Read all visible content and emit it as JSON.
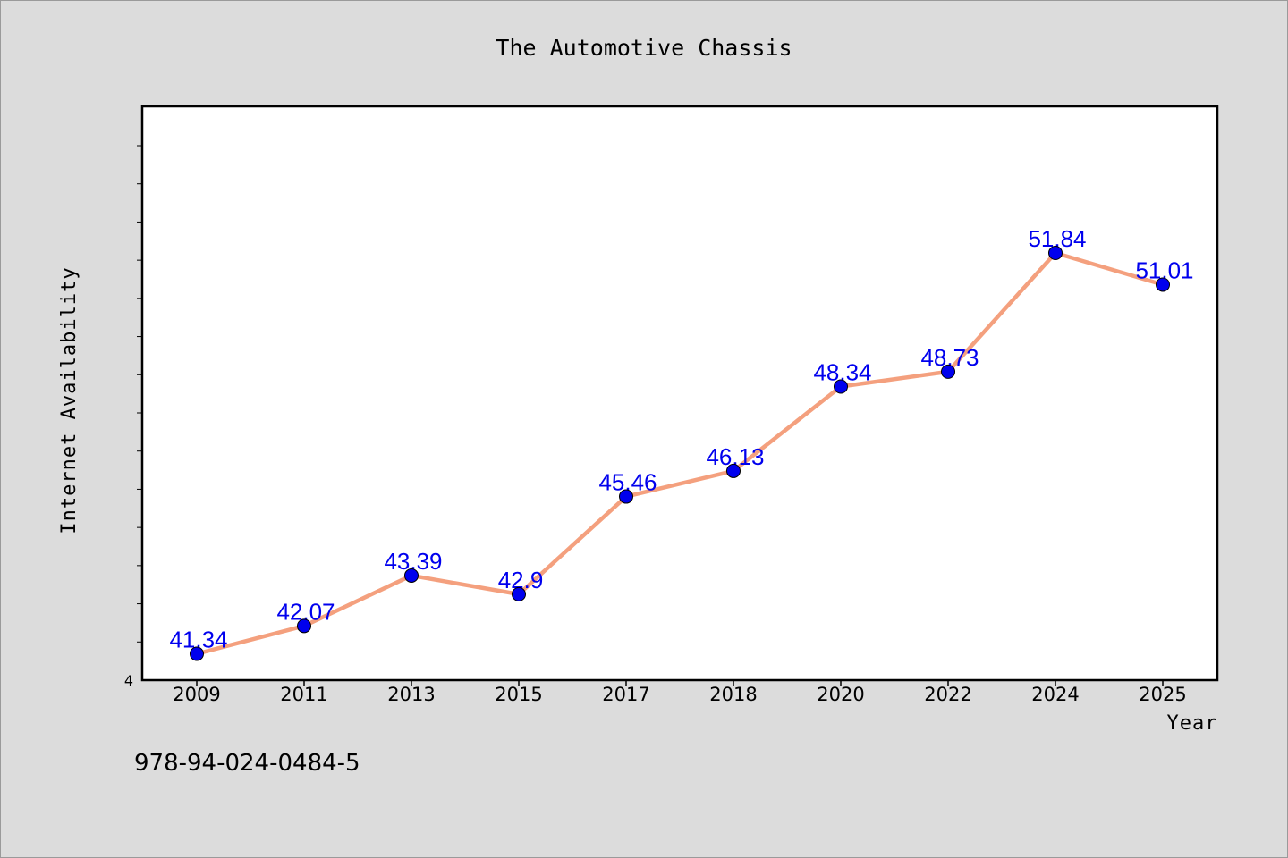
{
  "chart_data": {
    "type": "line",
    "title": "The Automotive Chassis",
    "xlabel": "Year",
    "ylabel": "Internet Availability",
    "categories": [
      "2009",
      "2011",
      "2013",
      "2015",
      "2017",
      "2018",
      "2020",
      "2022",
      "2024",
      "2025"
    ],
    "series": [
      {
        "values": [
          41.34,
          42.07,
          43.39,
          42.9,
          45.46,
          46.13,
          48.34,
          48.73,
          51.84,
          51.01
        ],
        "labels": [
          "41.34",
          "42.07",
          "43.39",
          "42.9",
          "45.46",
          "46.13",
          "48.34",
          "48.73",
          "51.84",
          "51.01"
        ],
        "line_color": "#f4a07e",
        "marker_color": "#0000ee",
        "label_color": "#0000ee"
      }
    ],
    "ylim": [
      40.65,
      55.68
    ],
    "y_tick_labels": [
      {
        "value": 40.65,
        "label": "4"
      }
    ],
    "grid": false,
    "legend": "none"
  },
  "footer": {
    "code": "978-94-024-0484-5"
  }
}
